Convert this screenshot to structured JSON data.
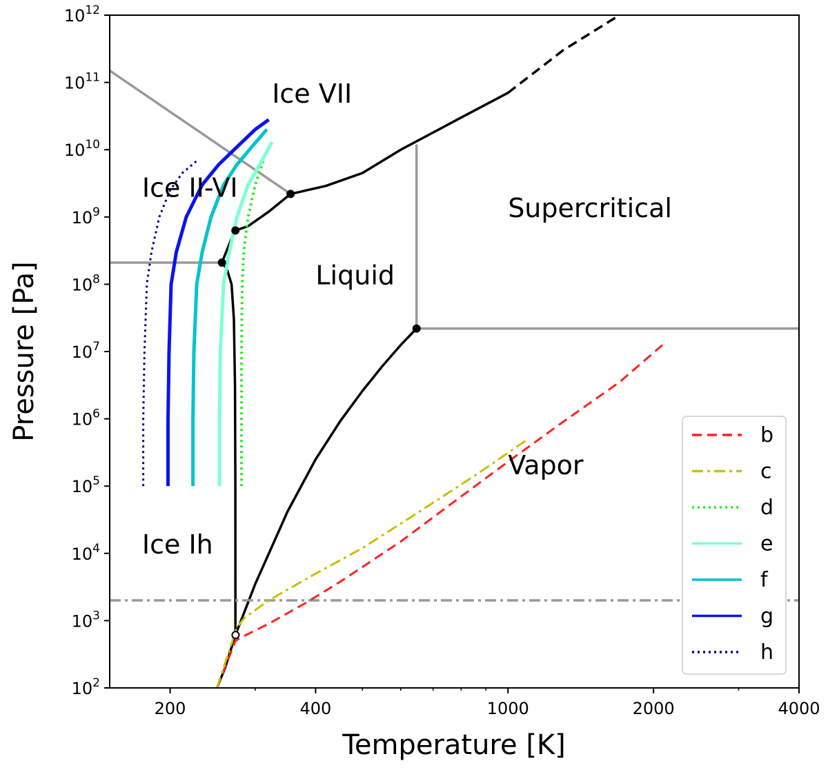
{
  "chart_data": {
    "type": "line",
    "title": "",
    "xlabel": "Temperature [K]",
    "ylabel": "Pressure [Pa]",
    "xscale": "log",
    "yscale": "log",
    "xlim": [
      150,
      4000
    ],
    "ylim": [
      100,
      1000000000000
    ],
    "x_ticks": [
      {
        "value": 200,
        "label": "200"
      },
      {
        "value": 400,
        "label": "400"
      },
      {
        "value": 1000,
        "label": "1000"
      },
      {
        "value": 2000,
        "label": "2000"
      },
      {
        "value": 4000,
        "label": "4000"
      }
    ],
    "y_ticks": [
      {
        "exp": 2,
        "base": "10",
        "sup": "2"
      },
      {
        "exp": 3,
        "base": "10",
        "sup": "3"
      },
      {
        "exp": 4,
        "base": "10",
        "sup": "4"
      },
      {
        "exp": 5,
        "base": "10",
        "sup": "5"
      },
      {
        "exp": 6,
        "base": "10",
        "sup": "6"
      },
      {
        "exp": 7,
        "base": "10",
        "sup": "7"
      },
      {
        "exp": 8,
        "base": "10",
        "sup": "8"
      },
      {
        "exp": 9,
        "base": "10",
        "sup": "9"
      },
      {
        "exp": 10,
        "base": "10",
        "sup": "10"
      },
      {
        "exp": 11,
        "base": "10",
        "sup": "11"
      },
      {
        "exp": 12,
        "base": "10",
        "sup": "12"
      }
    ],
    "regions": [
      {
        "label": "Ice VII",
        "T": 325,
        "P": 50000000000
      },
      {
        "label": "Ice II-VI",
        "T": 175,
        "P": 2000000000
      },
      {
        "label": "Supercritical",
        "T": 1000,
        "P": 1000000000
      },
      {
        "label": "Liquid",
        "T": 400,
        "P": 100000000
      },
      {
        "label": "Vapor",
        "T": 1000,
        "P": 150000
      },
      {
        "label": "Ice Ih",
        "T": 175,
        "P": 10000
      }
    ],
    "phase_boundaries": [
      {
        "name": "ice-vii-melting",
        "color": "#000000",
        "style": "solid",
        "T": [
          355,
          420,
          500,
          600,
          800,
          1000
        ],
        "P": [
          2200000000,
          2900000000,
          4500000000,
          10000000000,
          30000000000,
          70000000000
        ]
      },
      {
        "name": "ice-vii-melting-extrapolated",
        "color": "#000000",
        "style": "dashed",
        "T": [
          1000,
          1300,
          1700
        ],
        "P": [
          70000000000,
          300000000000,
          1000000000000
        ]
      },
      {
        "name": "ice-vi-melting",
        "color": "#000000",
        "style": "solid",
        "T": [
          273,
          290,
          320,
          355
        ],
        "P": [
          630000000,
          730000000,
          1200000000,
          2200000000
        ]
      },
      {
        "name": "ice-v-melting",
        "color": "#000000",
        "style": "solid",
        "T": [
          256,
          262,
          268,
          273
        ],
        "P": [
          210000000,
          320000000,
          480000000,
          630000000
        ]
      },
      {
        "name": "ice-ih-melting",
        "color": "#000000",
        "style": "solid",
        "T": [
          273,
          272.9,
          272.5,
          271,
          268,
          262,
          256
        ],
        "P": [
          611,
          100000,
          3000000,
          30000000,
          100000000,
          170000000,
          210000000
        ]
      },
      {
        "name": "vaporization",
        "color": "#000000",
        "style": "solid",
        "T": [
          273,
          300,
          350,
          400,
          450,
          500,
          550,
          600,
          647
        ],
        "P": [
          611,
          3500,
          42000,
          250000,
          930000,
          2600000,
          6100000,
          12500000,
          22000000
        ]
      },
      {
        "name": "sublimation",
        "color": "#000000",
        "style": "solid",
        "T": [
          250,
          260,
          273
        ],
        "P": [
          100,
          200,
          611
        ]
      },
      {
        "name": "supercritical-pressure-boundary",
        "color": "#999999",
        "style": "solid",
        "T": [
          647,
          4000
        ],
        "P": [
          22000000,
          22000000
        ]
      },
      {
        "name": "supercritical-temperature-boundary",
        "color": "#999999",
        "style": "solid",
        "T": [
          647,
          647
        ],
        "P": [
          22000000,
          12000000000
        ]
      },
      {
        "name": "ice-vii-lower-boundary",
        "color": "#999999",
        "style": "solid",
        "T": [
          150,
          355
        ],
        "P": [
          150000000000,
          2200000000
        ]
      },
      {
        "name": "ice-ih-upper-boundary",
        "color": "#999999",
        "style": "solid",
        "T": [
          150,
          256
        ],
        "P": [
          210000000,
          210000000
        ]
      },
      {
        "name": "reference-pressure",
        "color": "#999999",
        "style": "dashdot",
        "T": [
          150,
          4000
        ],
        "P": [
          2000,
          2000
        ]
      }
    ],
    "triple_points": [
      {
        "T": 355,
        "P": 2200000000,
        "hollow": false
      },
      {
        "T": 273,
        "P": 630000000,
        "hollow": false
      },
      {
        "T": 256,
        "P": 210000000,
        "hollow": false
      },
      {
        "T": 647,
        "P": 22000000,
        "hollow": false
      },
      {
        "T": 273.16,
        "P": 611,
        "hollow": true
      }
    ],
    "series": [
      {
        "name": "b",
        "color": "#ff2020",
        "style": "dashed",
        "T": [
          250,
          273,
          280,
          320,
          380,
          450,
          600,
          800,
          1000,
          1300,
          1700,
          2100
        ],
        "P": [
          100,
          500,
          560,
          900,
          1800,
          3800,
          15000,
          70000,
          230000,
          900000,
          3500000,
          13000000
        ]
      },
      {
        "name": "c",
        "color": "#c8c000",
        "style": "dashdot",
        "T": [
          250,
          275,
          285,
          320,
          400,
          500,
          650,
          850,
          1100
        ],
        "P": [
          100,
          800,
          1100,
          2000,
          5000,
          12000,
          40000,
          140000,
          500000
        ]
      },
      {
        "name": "d",
        "color": "#22ee22",
        "style": "dotted",
        "T": [
          281,
          281,
          281,
          282,
          284,
          290,
          300,
          312
        ],
        "P": [
          100000,
          1000000,
          10000000,
          100000000,
          300000000,
          1000000000,
          3000000000,
          7000000000
        ]
      },
      {
        "name": "e",
        "color": "#7fffd4",
        "style": "solid",
        "T": [
          253,
          253,
          254,
          258,
          265,
          275,
          290,
          310,
          325
        ],
        "P": [
          100000,
          1000000,
          10000000,
          100000000,
          300000000,
          1000000000,
          3000000000,
          7000000000,
          13000000000
        ]
      },
      {
        "name": "f",
        "color": "#00c4cc",
        "style": "solid",
        "T": [
          223,
          223,
          224,
          227,
          233,
          243,
          258,
          275,
          295,
          317
        ],
        "P": [
          100000,
          1000000,
          10000000,
          100000000,
          300000000,
          1000000000,
          3000000000,
          6000000000,
          11000000000,
          20000000000
        ]
      },
      {
        "name": "g",
        "color": "#0a14f0",
        "style": "solid",
        "T": [
          198,
          198,
          199,
          201,
          206,
          216,
          233,
          252,
          275,
          300,
          320
        ],
        "P": [
          100000,
          1000000,
          10000000,
          100000000,
          300000000,
          1000000000,
          3000000000,
          6000000000,
          11000000000,
          20000000000,
          28000000000
        ]
      },
      {
        "name": "h",
        "color": "#000080",
        "style": "dotted",
        "T": [
          176,
          176,
          177,
          179,
          183,
          190,
          200,
          212,
          228
        ],
        "P": [
          100000,
          1000000,
          10000000,
          100000000,
          300000000,
          1000000000,
          2500000000,
          4500000000,
          7000000000
        ]
      }
    ],
    "legend": {
      "position": "lower-right",
      "entries": [
        "b",
        "c",
        "d",
        "e",
        "f",
        "g",
        "h"
      ]
    }
  }
}
